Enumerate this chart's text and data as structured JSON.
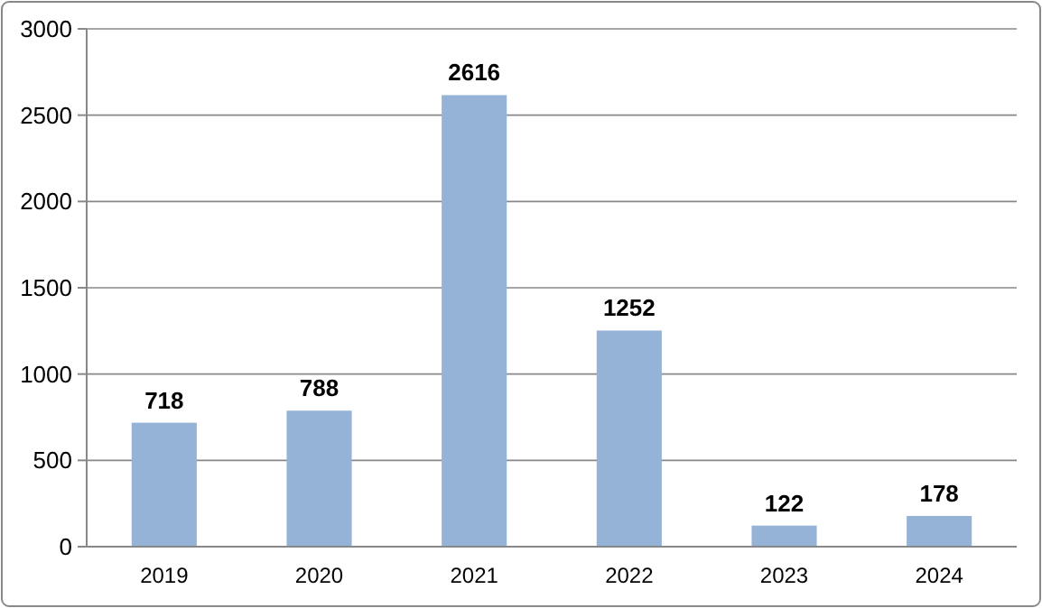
{
  "chart_data": {
    "type": "bar",
    "categories": [
      "2019",
      "2020",
      "2021",
      "2022",
      "2023",
      "2024"
    ],
    "values": [
      718,
      788,
      2616,
      1252,
      122,
      178
    ],
    "color": "#95b3d7",
    "ylim": [
      0,
      3000
    ],
    "yticks": [
      0,
      500,
      1000,
      1500,
      2000,
      2500,
      3000
    ],
    "grid": "y",
    "data_labels": true
  }
}
